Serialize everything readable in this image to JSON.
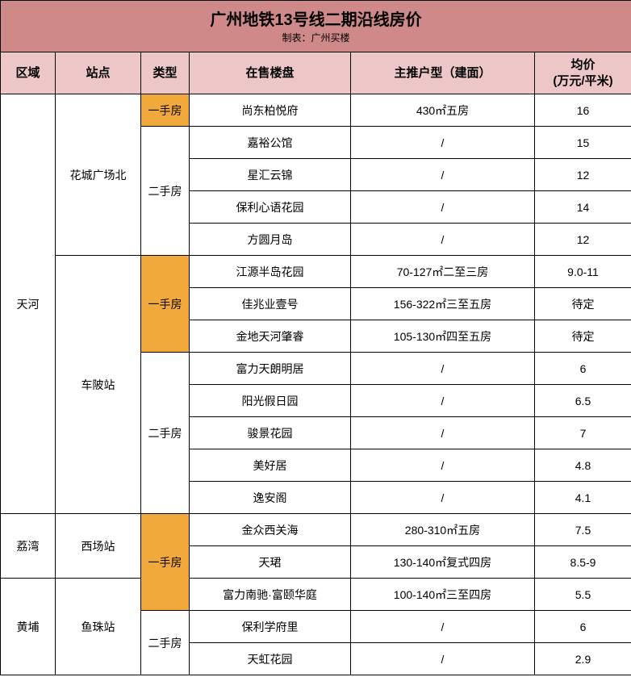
{
  "title": "广州地铁13号线二期沿线房价",
  "subtitle": "制表：广州买楼",
  "colors": {
    "title_bg": "#d08989",
    "header_bg": "#edc7c7",
    "type_new_bg": "#f2a93b",
    "border": "#000000",
    "text": "#000000"
  },
  "columns": {
    "region": "区域",
    "station": "站点",
    "type": "类型",
    "project": "在售楼盘",
    "unit": "主推户型（建面）",
    "price_l1": "均价",
    "price_l2": "(万元/平米)"
  },
  "type_labels": {
    "new": "一手房",
    "second": "二手房"
  },
  "regions": {
    "tianhe": "天河",
    "liwan": "荔湾",
    "huangpu": "黄埔"
  },
  "stations": {
    "huacheng": "花城广场北",
    "chebei": "车陂站",
    "xichang": "西场站",
    "yuzhu": "鱼珠站"
  },
  "rows": [
    {
      "project": "尚东柏悦府",
      "unit": "430㎡五房",
      "price": "16"
    },
    {
      "project": "嘉裕公馆",
      "unit": "/",
      "price": "15"
    },
    {
      "project": "星汇云锦",
      "unit": "/",
      "price": "12"
    },
    {
      "project": "保利心语花园",
      "unit": "/",
      "price": "14"
    },
    {
      "project": "方圆月岛",
      "unit": "/",
      "price": "12"
    },
    {
      "project": "江源半岛花园",
      "unit": "70-127㎡二至三房",
      "price": "9.0-11"
    },
    {
      "project": "佳兆业壹号",
      "unit": "156-322㎡三至五房",
      "price": "待定"
    },
    {
      "project": "金地天河肇睿",
      "unit": "105-130㎡四至五房",
      "price": "待定"
    },
    {
      "project": "富力天朗明居",
      "unit": "/",
      "price": "6"
    },
    {
      "project": "阳光假日园",
      "unit": "/",
      "price": "6.5"
    },
    {
      "project": "骏景花园",
      "unit": "/",
      "price": "7"
    },
    {
      "project": "美好居",
      "unit": "/",
      "price": "4.8"
    },
    {
      "project": "逸安阁",
      "unit": "/",
      "price": "4.1"
    },
    {
      "project": "金众西关海",
      "unit": "280-310㎡五房",
      "price": "7.5"
    },
    {
      "project": "天珺",
      "unit": "130-140㎡复式四房",
      "price": "8.5-9"
    },
    {
      "project": "富力南驰·富颐华庭",
      "unit": "100-140㎡三至四房",
      "price": "5.5"
    },
    {
      "project": "保利学府里",
      "unit": "/",
      "price": "6"
    },
    {
      "project": "天虹花园",
      "unit": "/",
      "price": "2.9"
    }
  ]
}
